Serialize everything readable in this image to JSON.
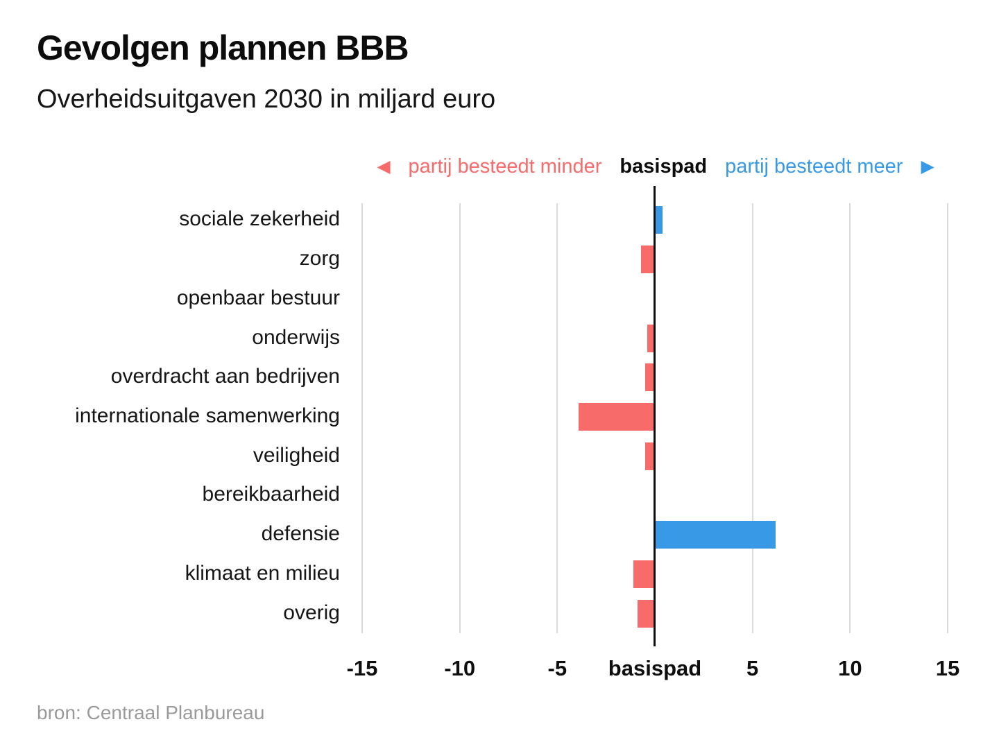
{
  "title": "Gevolgen plannen BBB",
  "subtitle": "Overheidsuitgaven 2030 in miljard euro",
  "legend": {
    "left_arrow": "◀",
    "less_label": "partij besteedt minder",
    "base_label": "basispad",
    "more_label": "partij besteedt meer",
    "right_arrow": "▶"
  },
  "source": "bron: Centraal Planbureau",
  "colors": {
    "negative_bar": "#f76b6b",
    "positive_bar": "#3899e6",
    "axis": "#0d0d0d",
    "gridline": "#dadada",
    "source_text": "#9a9a9a"
  },
  "chart_data": {
    "type": "bar",
    "orientation": "horizontal",
    "diverging": true,
    "title": "Gevolgen plannen BBB",
    "subtitle": "Overheidsuitgaven 2030 in miljard euro",
    "unit": "miljard euro",
    "baseline_label": "basispad",
    "negative_meaning": "partij besteedt minder",
    "positive_meaning": "partij besteedt meer",
    "xlim": [
      -15,
      15
    ],
    "grid": true,
    "categories": [
      "sociale zekerheid",
      "zorg",
      "openbaar bestuur",
      "onderwijs",
      "overdracht aan bedrijven",
      "internationale samenwerking",
      "veiligheid",
      "bereikbaarheid",
      "defensie",
      "klimaat en milieu",
      "overig"
    ],
    "values": [
      0.4,
      -0.7,
      0,
      -0.4,
      -0.5,
      -3.9,
      -0.5,
      0,
      6.2,
      -1.1,
      -0.9
    ],
    "ticks": [
      {
        "label": "-15",
        "value": -15
      },
      {
        "label": "-10",
        "value": -10
      },
      {
        "label": "-5",
        "value": -5
      },
      {
        "label": "basispad",
        "value": 0,
        "bold": true
      },
      {
        "label": "5",
        "value": 5
      },
      {
        "label": "10",
        "value": 10
      },
      {
        "label": "15",
        "value": 15
      }
    ]
  }
}
